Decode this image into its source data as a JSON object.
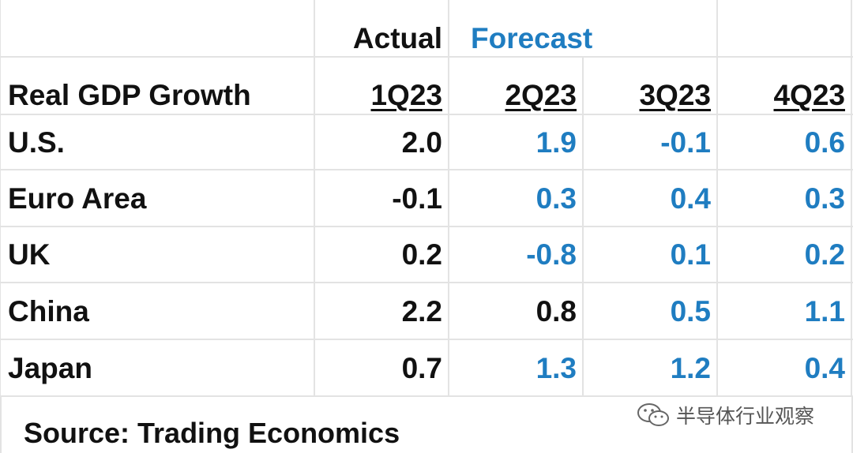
{
  "table": {
    "header": {
      "actual": "Actual",
      "forecast": "Forecast"
    },
    "columns": [
      "Real GDP Growth",
      "1Q23",
      "2Q23",
      "3Q23",
      "4Q23"
    ],
    "rows": [
      [
        "U.S.",
        "2.0",
        "1.9",
        "-0.1",
        "0.6"
      ],
      [
        "Euro Area",
        "-0.1",
        "0.3",
        "0.4",
        "0.3"
      ],
      [
        "UK",
        "0.2",
        "-0.8",
        "0.1",
        "0.2"
      ],
      [
        "China",
        "2.2",
        "0.8",
        "0.5",
        "1.1"
      ],
      [
        "Japan",
        "0.7",
        "1.3",
        "1.2",
        "0.4"
      ]
    ],
    "source": "Source: Trading Economics",
    "watermark": "半导体行业观察"
  }
}
